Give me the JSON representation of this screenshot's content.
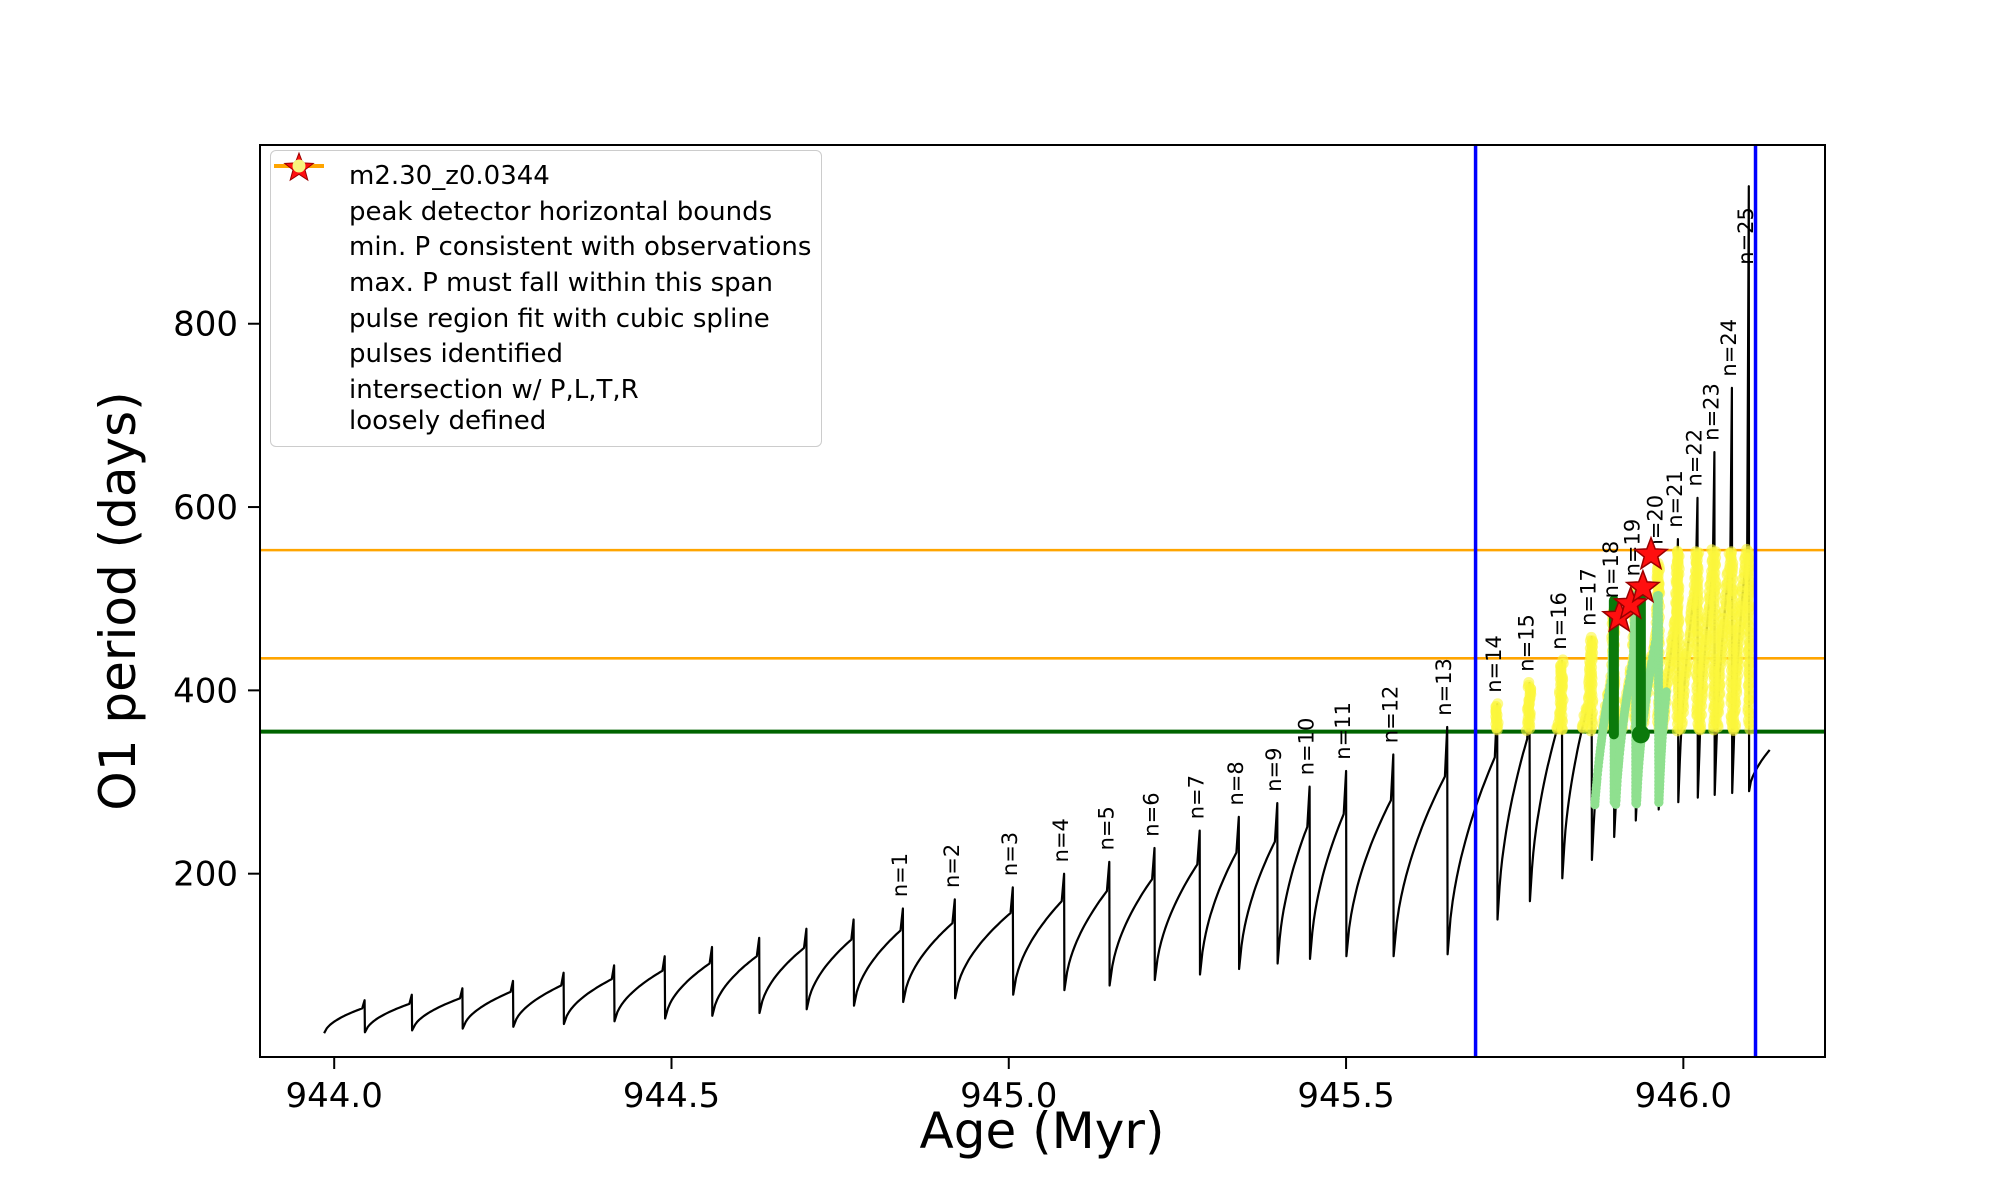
{
  "legend": {
    "items": [
      {
        "label": "m2.30_z0.0344",
        "glyph": "line-dot",
        "color": "#000000"
      },
      {
        "label": "peak detector horizontal bounds",
        "glyph": "line",
        "color": "#0000ff"
      },
      {
        "label": "min. P consistent with observations",
        "glyph": "line",
        "color": "#006400"
      },
      {
        "label": "max. P must fall within this span",
        "glyph": "line",
        "color": "#ffa500"
      },
      {
        "label": "pulse region fit with cubic spline",
        "glyph": "dot",
        "color": "#90ee90"
      },
      {
        "label": "pulses identified",
        "glyph": "star",
        "color": "#ff0f0f"
      },
      {
        "label": "intersection w/ P,L,T,R\nloosely defined",
        "glyph": "dot",
        "color": "#f7f37e"
      }
    ]
  },
  "chart_data": {
    "type": "line",
    "title": "",
    "xlabel": "Age (Myr)",
    "ylabel": "O1 period (days)",
    "xlim": [
      943.89,
      946.21
    ],
    "ylim": [
      0,
      995
    ],
    "x_ticks": [
      "944.0",
      "944.5",
      "945.0",
      "945.5",
      "946.0"
    ],
    "x_tick_values": [
      944.0,
      944.5,
      945.0,
      945.5,
      946.0
    ],
    "y_ticks": [
      "200",
      "400",
      "600",
      "800"
    ],
    "y_tick_values": [
      200,
      400,
      600,
      800
    ],
    "series": [
      {
        "name": "m2.30_z0.0344",
        "color": "#000000"
      }
    ],
    "peak_detector_bounds": {
      "x": [
        945.692,
        946.107
      ],
      "color": "#0000ff"
    },
    "min_p_line": {
      "y": 355,
      "color": "#006400"
    },
    "max_p_span": {
      "y": [
        435,
        553
      ],
      "color": "#ffa500"
    },
    "pulses_identified": {
      "color": "#ff0f0f",
      "points": [
        [
          945.905,
          480
        ],
        [
          945.922,
          494
        ],
        [
          945.94,
          512
        ],
        [
          945.952,
          548
        ]
      ]
    },
    "spline_region": {
      "color_dots": "#8fe08f",
      "color_bars": "#0b7a0b",
      "x_range": [
        945.868,
        945.975
      ],
      "y_range": [
        275,
        505
      ],
      "bars": [
        {
          "x": 945.897,
          "y": [
            352,
            498
          ]
        },
        {
          "x": 945.937,
          "y": [
            350,
            505
          ]
        }
      ],
      "anchor_dot": {
        "x": 945.937,
        "y": 352
      }
    },
    "intersection_region": {
      "color": "#fbf73c",
      "x_range": [
        945.695,
        946.105
      ],
      "y_range": [
        356,
        553
      ]
    },
    "curve_start": {
      "x": 943.985,
      "v": 26
    },
    "curve_tail": {
      "x": 946.128,
      "v": 335
    },
    "teeth": {
      "columns": [
        "x",
        "peak",
        "shoulder",
        "min_after",
        "label"
      ],
      "rows": [
        [
          944.045,
          62,
          53,
          27,
          ""
        ],
        [
          944.115,
          68,
          58,
          29,
          ""
        ],
        [
          944.19,
          75,
          64,
          31,
          ""
        ],
        [
          944.265,
          83,
          71,
          33,
          ""
        ],
        [
          944.34,
          92,
          78,
          36,
          ""
        ],
        [
          944.415,
          100,
          85,
          39,
          ""
        ],
        [
          944.49,
          110,
          94,
          42,
          ""
        ],
        [
          944.56,
          120,
          102,
          45,
          ""
        ],
        [
          944.63,
          130,
          110,
          48,
          ""
        ],
        [
          944.7,
          140,
          119,
          52,
          ""
        ],
        [
          944.77,
          150,
          128,
          56,
          ""
        ],
        [
          944.843,
          162,
          138,
          60,
          "n=1"
        ],
        [
          944.92,
          172,
          146,
          64,
          "n=2"
        ],
        [
          945.006,
          185,
          157,
          68,
          "n=3"
        ],
        [
          945.082,
          200,
          170,
          73,
          "n=4"
        ],
        [
          945.149,
          213,
          181,
          78,
          "n=5"
        ],
        [
          945.216,
          228,
          194,
          84,
          "n=6"
        ],
        [
          945.283,
          247,
          210,
          90,
          "n=7"
        ],
        [
          945.341,
          262,
          223,
          96,
          "n=8"
        ],
        [
          945.398,
          277,
          235,
          102,
          "n=9"
        ],
        [
          945.446,
          295,
          251,
          107,
          "n=10"
        ],
        [
          945.5,
          312,
          265,
          110,
          "n=11"
        ],
        [
          945.57,
          330,
          280,
          110,
          "n=12"
        ],
        [
          945.65,
          360,
          306,
          112,
          "n=13"
        ],
        [
          945.724,
          385,
          327,
          150,
          "n=14"
        ],
        [
          945.772,
          408,
          347,
          170,
          "n=15"
        ],
        [
          945.82,
          432,
          367,
          195,
          "n=16"
        ],
        [
          945.864,
          458,
          389,
          215,
          "n=17"
        ],
        [
          945.897,
          488,
          415,
          240,
          "n=18"
        ],
        [
          945.929,
          512,
          435,
          258,
          "n=19"
        ],
        [
          945.963,
          538,
          457,
          270,
          "n=20"
        ],
        [
          945.992,
          565,
          480,
          278,
          "n=21"
        ],
        [
          946.021,
          610,
          518,
          283,
          "n=22"
        ],
        [
          946.046,
          660,
          533,
          286,
          "n=23"
        ],
        [
          946.072,
          730,
          545,
          288,
          "n=24"
        ],
        [
          946.097,
          950,
          556,
          290,
          "n=25"
        ]
      ]
    }
  }
}
